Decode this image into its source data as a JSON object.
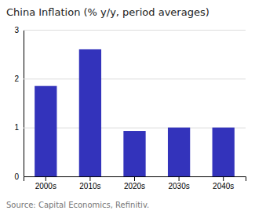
{
  "chart_data": {
    "type": "bar",
    "title": "China Inflation (% y/y, period averages)",
    "categories": [
      "2000s",
      "2010s",
      "2020s",
      "2030s",
      "2040s"
    ],
    "values": [
      1.85,
      2.6,
      0.93,
      1.0,
      1.0
    ],
    "color": "#3333bb",
    "ylim": [
      0,
      3
    ],
    "yticks": [
      0,
      1,
      2,
      3
    ],
    "grid": true,
    "source": "Source: Capital Economics, Refinitiv."
  }
}
